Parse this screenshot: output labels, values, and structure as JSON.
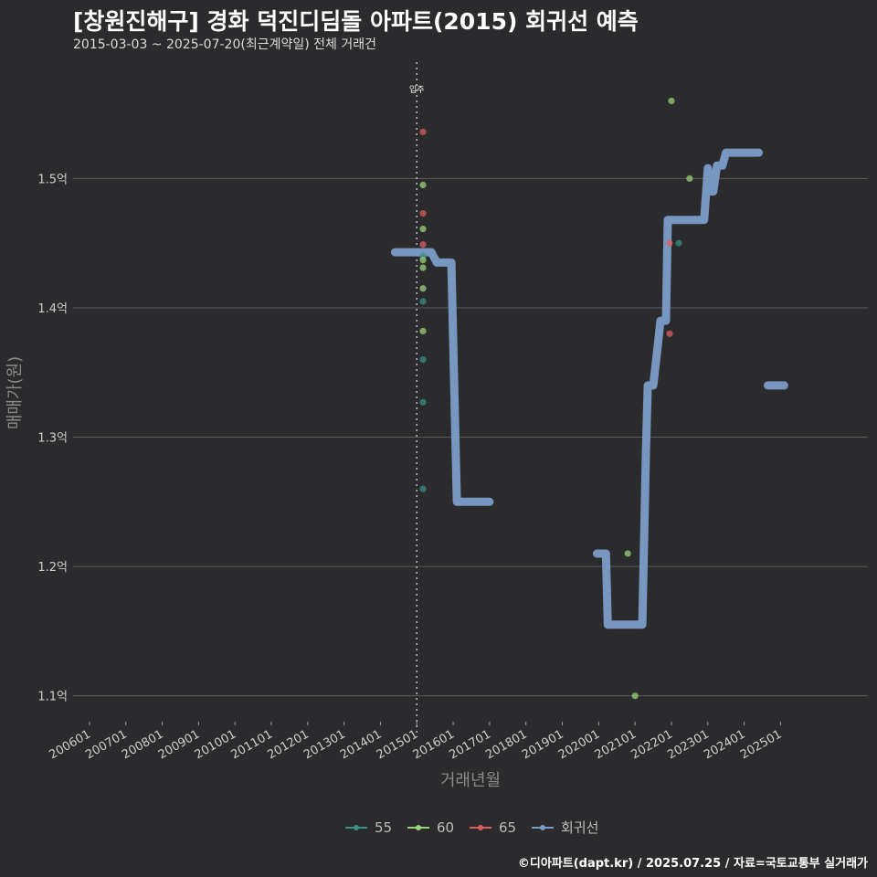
{
  "header": {
    "title": "[창원진해구] 경화 덕진디딤돌 아파트(2015) 회귀선 예측",
    "subtitle": "2015-03-03 ~ 2025-07-20(최근계약일) 전체 거래건"
  },
  "footer": {
    "credit": "©디아파트(dapt.kr) / 2025.07.25 / 자료=국토교통부 실거래가"
  },
  "colors": {
    "background": "#2b2b2d",
    "grid": "#5a5a5a",
    "s55": "#3a8f86",
    "s60": "#9bd27a",
    "s65": "#d95f5f",
    "regression": "#7b9cc8"
  },
  "chart_data": {
    "type": "scatter",
    "title": "[창원진해구] 경화 덕진디딤돌 아파트(2015) 회귀선 예측",
    "xlabel": "거래년월",
    "ylabel": "매매가(원)",
    "x_unit": "years",
    "xlim": [
      2005.55,
      2027.4
    ],
    "ylim": [
      1.08,
      1.59
    ],
    "yticks": [
      1.1,
      1.2,
      1.3,
      1.4,
      1.5
    ],
    "ytick_labels": [
      "1.1억",
      "1.2억",
      "1.3억",
      "1.4억",
      "1.5억"
    ],
    "xtick_labels": [
      "200601",
      "200701",
      "200801",
      "200901",
      "201001",
      "201101",
      "201201",
      "201301",
      "201401",
      "201501",
      "201601",
      "201701",
      "201801",
      "201901",
      "202001",
      "202101",
      "202201",
      "202301",
      "202401",
      "202501"
    ],
    "annotation": {
      "label": "입주",
      "x": 2015.0
    },
    "legend": [
      "55",
      "60",
      "65",
      "회귀선"
    ],
    "series": [
      {
        "name": "55",
        "color": "#3a8f86",
        "points": [
          [
            2015.17,
            1.26
          ],
          [
            2015.17,
            1.327
          ],
          [
            2015.17,
            1.36
          ],
          [
            2015.17,
            1.405
          ],
          [
            2015.17,
            1.44
          ],
          [
            2022.2,
            1.45
          ]
        ]
      },
      {
        "name": "60",
        "color": "#9bd27a",
        "points": [
          [
            2015.17,
            1.495
          ],
          [
            2015.17,
            1.461
          ],
          [
            2015.17,
            1.437
          ],
          [
            2015.17,
            1.431
          ],
          [
            2015.17,
            1.415
          ],
          [
            2015.17,
            1.382
          ],
          [
            2020.8,
            1.21
          ],
          [
            2021.0,
            1.1
          ],
          [
            2022.0,
            1.56
          ],
          [
            2022.5,
            1.5
          ]
        ]
      },
      {
        "name": "65",
        "color": "#d95f5f",
        "points": [
          [
            2015.17,
            1.536
          ],
          [
            2015.17,
            1.473
          ],
          [
            2015.17,
            1.449
          ],
          [
            2021.95,
            1.45
          ],
          [
            2021.95,
            1.38
          ]
        ]
      }
    ],
    "regression": [
      {
        "name": "회귀선",
        "segments": [
          [
            [
              2014.4,
              1.443
            ],
            [
              2015.4,
              1.443
            ],
            [
              2015.55,
              1.435
            ],
            [
              2015.95,
              1.435
            ],
            [
              2016.1,
              1.25
            ],
            [
              2017.0,
              1.25
            ]
          ],
          [
            [
              2019.95,
              1.21
            ],
            [
              2020.2,
              1.21
            ],
            [
              2020.25,
              1.155
            ],
            [
              2021.2,
              1.155
            ],
            [
              2021.3,
              1.29
            ],
            [
              2021.35,
              1.34
            ],
            [
              2021.5,
              1.34
            ],
            [
              2021.6,
              1.365
            ],
            [
              2021.7,
              1.39
            ],
            [
              2021.85,
              1.39
            ],
            [
              2021.9,
              1.468
            ],
            [
              2022.9,
              1.468
            ],
            [
              2023.0,
              1.508
            ],
            [
              2023.05,
              1.49
            ],
            [
              2023.15,
              1.49
            ],
            [
              2023.25,
              1.51
            ],
            [
              2023.4,
              1.51
            ],
            [
              2023.5,
              1.52
            ],
            [
              2024.4,
              1.52
            ]
          ],
          [
            [
              2024.65,
              1.34
            ],
            [
              2025.1,
              1.34
            ]
          ]
        ]
      }
    ]
  }
}
